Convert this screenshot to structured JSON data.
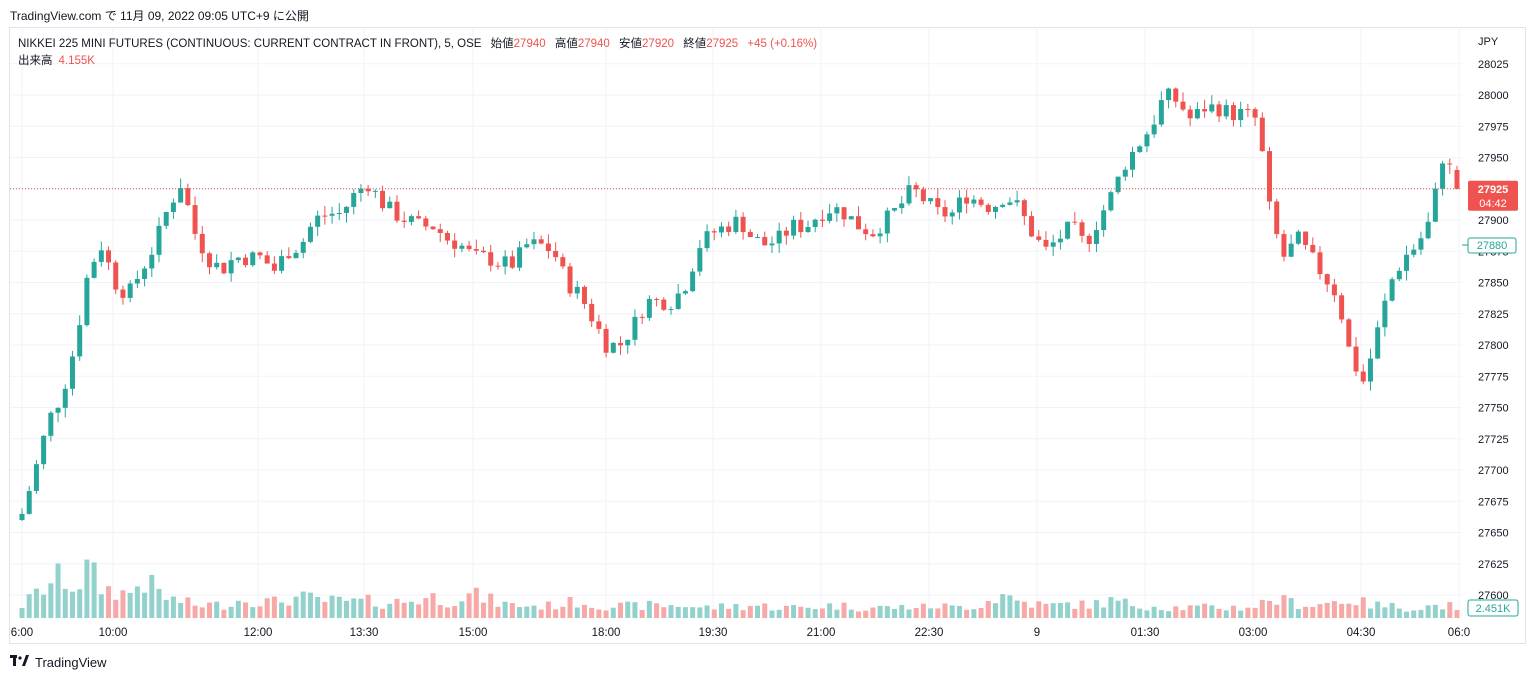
{
  "header": {
    "source_text": "TradingView.com で 11月 09, 2022 09:05 UTC+9 に公開"
  },
  "legend": {
    "symbol": "NIKKEI 225 MINI FUTURES (CONTINUOUS: CURRENT CONTRACT IN FRONT), 5, OSE",
    "open_label": "始値",
    "open": "27940",
    "high_label": "高値",
    "high": "27940",
    "low_label": "安値",
    "low": "27920",
    "close_label": "終値",
    "close": "27925",
    "change": "+45 (+0.16%)",
    "volume_label": "出来高",
    "volume": "4.155K"
  },
  "footer": {
    "brand": "TradingView"
  },
  "colors": {
    "up": "#26a69a",
    "down": "#ef5350",
    "up_volume": "#93d2cc",
    "down_volume": "#f7a9a7",
    "grid": "#f0f3fa",
    "axis_text": "#131722"
  },
  "chart_data": {
    "type": "candlestick",
    "currency": "JPY",
    "interval": "5",
    "y_ticks": [
      27600,
      27625,
      27650,
      27675,
      27700,
      27725,
      27750,
      27775,
      27800,
      27825,
      27850,
      27875,
      27900,
      27925,
      27950,
      27975,
      28000,
      28025
    ],
    "x_tick_labels": [
      "6:00",
      "10:00",
      "12:00",
      "13:30",
      "15:00",
      "18:00",
      "19:30",
      "21:00",
      "22:30",
      "9",
      "01:30",
      "03:00",
      "04:30",
      "06:0"
    ],
    "ylim": [
      27590,
      28035
    ],
    "last_price": {
      "value": "27925",
      "countdown": "04:42"
    },
    "marked_price": {
      "value": "27880"
    },
    "last_volume": {
      "value": "2.451K"
    },
    "close_path": [
      27665,
      27700,
      27740,
      27760,
      27800,
      27860,
      27880,
      27850,
      27840,
      27860,
      27880,
      27910,
      27930,
      27890,
      27870,
      27860,
      27870,
      27870,
      27870,
      27860,
      27875,
      27880,
      27900,
      27905,
      27905,
      27920,
      27930,
      27915,
      27905,
      27900,
      27895,
      27895,
      27885,
      27880,
      27870,
      27870,
      27865,
      27865,
      27880,
      27880,
      27875,
      27850,
      27840,
      27820,
      27800,
      27800,
      27815,
      27835,
      27835,
      27835,
      27850,
      27880,
      27890,
      27895,
      27900,
      27885,
      27880,
      27885,
      27895,
      27895,
      27905,
      27910,
      27905,
      27895,
      27890,
      27900,
      27910,
      27925,
      27915,
      27905,
      27905,
      27920,
      27915,
      27910,
      27920,
      27910,
      27890,
      27875,
      27885,
      27895,
      27880,
      27900,
      27920,
      27945,
      27960,
      27975,
      28000,
      27995,
      27980,
      27990,
      27990,
      27985,
      27985,
      27980,
      27900,
      27870,
      27885,
      27870,
      27855,
      27840,
      27790,
      27770,
      27810,
      27850,
      27870,
      27880,
      27900,
      27955,
      27925
    ],
    "volume_path": [
      0.3,
      0.55,
      0.8,
      1.0,
      0.7,
      1.2,
      0.7,
      0.65,
      0.55,
      0.9,
      0.7,
      0.45,
      0.4,
      0.3,
      0.32,
      0.3,
      0.4,
      0.45,
      0.4,
      0.38,
      0.45,
      0.48,
      0.45,
      0.4,
      0.4,
      0.38,
      0.4,
      0.35,
      0.38,
      0.4,
      0.45,
      0.5,
      0.4,
      0.5,
      0.55,
      0.45,
      0.35,
      0.3,
      0.3,
      0.28,
      0.3,
      0.35,
      0.4,
      0.3,
      0.3,
      0.28,
      0.28,
      0.3,
      0.3,
      0.3,
      0.3,
      0.25,
      0.25,
      0.28,
      0.28,
      0.3,
      0.28,
      0.25,
      0.25,
      0.25,
      0.28,
      0.3,
      0.28,
      0.25,
      0.25,
      0.25,
      0.25,
      0.28,
      0.25,
      0.3,
      0.25,
      0.28,
      0.3,
      0.45,
      0.55,
      0.4,
      0.35,
      0.3,
      0.3,
      0.35,
      0.3,
      0.35,
      0.4,
      0.35,
      0.3,
      0.3,
      0.25,
      0.25,
      0.25,
      0.25,
      0.25,
      0.25,
      0.25,
      0.3,
      0.45,
      0.4,
      0.35,
      0.3,
      0.35,
      0.4,
      0.45,
      0.35,
      0.3,
      0.28,
      0.25,
      0.25,
      0.28,
      0.3,
      0.28
    ],
    "volume_max": "about 9K",
    "grid": true,
    "last_price_line": true
  }
}
